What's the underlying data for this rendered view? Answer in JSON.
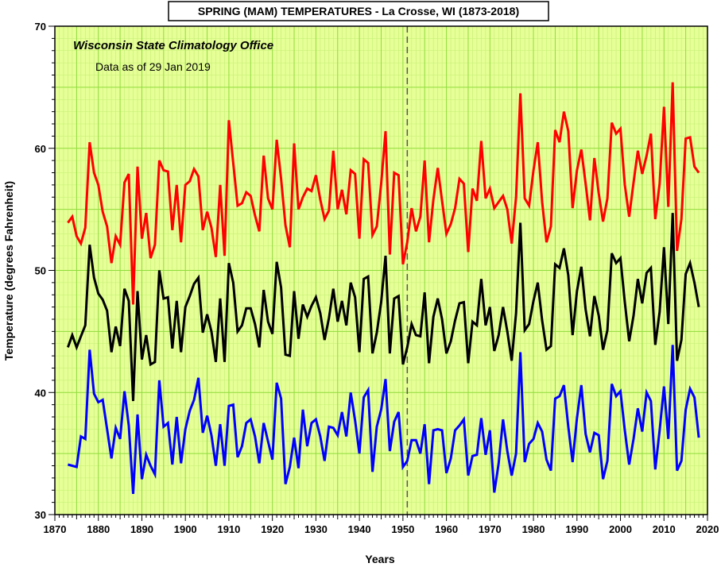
{
  "chart_data": {
    "type": "line",
    "title": "SPRING (MAM) TEMPERATURES - La Crosse, WI  (1873-2018)",
    "annotations": [
      "Wisconsin State Climatology Office",
      "Data as of 29 Jan 2019"
    ],
    "xlabel": "Years",
    "ylabel": "Temperature (degrees Fahrenheit)",
    "xlim": [
      1870,
      2020
    ],
    "ylim": [
      30,
      70
    ],
    "x_ticks": [
      "1870",
      "1880",
      "1890",
      "1900",
      "1910",
      "1920",
      "1930",
      "1940",
      "1950",
      "1960",
      "1970",
      "1980",
      "1990",
      "2000",
      "2010",
      "2020"
    ],
    "y_ticks": [
      "30",
      "40",
      "50",
      "60",
      "70"
    ],
    "grid": true,
    "vline_x": 1951,
    "x": [
      1873,
      1874,
      1875,
      1876,
      1877,
      1878,
      1879,
      1880,
      1881,
      1882,
      1883,
      1884,
      1885,
      1886,
      1887,
      1888,
      1889,
      1890,
      1891,
      1892,
      1893,
      1894,
      1895,
      1896,
      1897,
      1898,
      1899,
      1900,
      1901,
      1902,
      1903,
      1904,
      1905,
      1906,
      1907,
      1908,
      1909,
      1910,
      1911,
      1912,
      1913,
      1914,
      1915,
      1916,
      1917,
      1918,
      1919,
      1920,
      1921,
      1922,
      1923,
      1924,
      1925,
      1926,
      1927,
      1928,
      1929,
      1930,
      1931,
      1932,
      1933,
      1934,
      1935,
      1936,
      1937,
      1938,
      1939,
      1940,
      1941,
      1942,
      1943,
      1944,
      1945,
      1946,
      1947,
      1948,
      1949,
      1950,
      1951,
      1952,
      1953,
      1954,
      1955,
      1956,
      1957,
      1958,
      1959,
      1960,
      1961,
      1962,
      1963,
      1964,
      1965,
      1966,
      1967,
      1968,
      1969,
      1970,
      1971,
      1972,
      1973,
      1974,
      1975,
      1976,
      1977,
      1978,
      1979,
      1980,
      1981,
      1982,
      1983,
      1984,
      1985,
      1986,
      1987,
      1988,
      1989,
      1990,
      1991,
      1992,
      1993,
      1994,
      1995,
      1996,
      1997,
      1998,
      1999,
      2000,
      2001,
      2002,
      2003,
      2004,
      2005,
      2006,
      2007,
      2008,
      2009,
      2010,
      2011,
      2012,
      2013,
      2014,
      2015,
      2016,
      2017,
      2018
    ],
    "series": [
      {
        "color": "#ff0000",
        "values": [
          53.9,
          54.4,
          52.8,
          52.2,
          53.5,
          60.5,
          58.0,
          57.0,
          54.8,
          53.6,
          50.6,
          52.8,
          52.1,
          57.2,
          57.9,
          47.2,
          58.5,
          52.6,
          54.7,
          51.0,
          52.1,
          59.0,
          58.2,
          58.1,
          53.3,
          57.0,
          52.3,
          57.0,
          57.3,
          58.3,
          57.7,
          53.3,
          54.8,
          53.5,
          51.1,
          57.0,
          51.2,
          62.3,
          58.8,
          55.3,
          55.5,
          56.4,
          56.1,
          54.5,
          53.2,
          59.4,
          55.9,
          55.0,
          60.7,
          57.5,
          53.7,
          51.9,
          60.4,
          55.0,
          56.0,
          56.7,
          56.5,
          57.8,
          55.8,
          54.2,
          54.9,
          59.8,
          55.0,
          56.6,
          54.6,
          58.2,
          57.9,
          52.6,
          59.1,
          58.8,
          52.9,
          53.6,
          57.1,
          61.4,
          51.3,
          58.0,
          57.8,
          50.5,
          52.3,
          55.1,
          53.2,
          54.4,
          59.0,
          52.3,
          55.8,
          58.4,
          55.7,
          53.0,
          53.8,
          55.1,
          57.5,
          57.1,
          51.5,
          56.7,
          55.7,
          60.6,
          55.9,
          56.7,
          55.1,
          55.6,
          56.1,
          55.0,
          52.2,
          56.0,
          64.5,
          55.9,
          55.3,
          58.2,
          60.5,
          55.6,
          52.3,
          53.6,
          61.5,
          60.5,
          63.0,
          61.4,
          55.1,
          58.2,
          59.9,
          57.1,
          54.1,
          59.2,
          56.3,
          54.0,
          55.9,
          62.1,
          61.2,
          61.6,
          57.0,
          54.4,
          57.2,
          59.8,
          57.9,
          59.4,
          61.2,
          54.2,
          57.1,
          63.4,
          55.2,
          65.4,
          51.6,
          54.2,
          60.8,
          60.9,
          58.5,
          58.0
        ]
      },
      {
        "color": "#000000",
        "values": [
          43.7,
          44.7,
          43.7,
          44.6,
          45.5,
          52.1,
          49.4,
          48.1,
          47.6,
          46.7,
          43.3,
          45.4,
          43.8,
          48.5,
          47.5,
          39.3,
          48.3,
          42.7,
          44.7,
          42.3,
          42.5,
          50.0,
          47.7,
          47.8,
          43.6,
          47.5,
          43.3,
          47.0,
          47.9,
          48.9,
          49.4,
          44.9,
          46.4,
          45.0,
          42.5,
          47.7,
          42.5,
          50.6,
          49.0,
          45.0,
          45.5,
          46.9,
          46.9,
          45.6,
          43.7,
          48.4,
          45.8,
          44.8,
          50.7,
          48.6,
          43.1,
          43.0,
          48.3,
          44.4,
          47.2,
          46.2,
          47.1,
          47.8,
          46.5,
          44.3,
          46.1,
          48.5,
          45.8,
          47.5,
          45.5,
          49.0,
          47.8,
          43.3,
          49.3,
          49.5,
          43.2,
          44.9,
          47.4,
          51.2,
          43.2,
          47.7,
          47.9,
          42.3,
          43.7,
          45.6,
          44.7,
          44.6,
          48.2,
          42.4,
          46.2,
          47.7,
          46.0,
          43.2,
          44.2,
          45.9,
          47.3,
          47.4,
          42.4,
          45.8,
          45.5,
          49.3,
          45.5,
          47.0,
          43.4,
          44.7,
          47.0,
          45.0,
          42.6,
          46.5,
          53.9,
          45.1,
          45.6,
          47.5,
          49.0,
          45.9,
          43.5,
          43.8,
          50.5,
          50.2,
          51.8,
          49.6,
          44.7,
          48.3,
          50.3,
          46.8,
          44.6,
          47.9,
          46.3,
          43.5,
          45.1,
          51.4,
          50.6,
          51.0,
          47.4,
          44.2,
          46.3,
          49.3,
          47.3,
          49.8,
          50.2,
          43.9,
          46.6,
          51.9,
          45.6,
          54.7,
          42.6,
          44.3,
          49.7,
          50.6,
          49.0,
          47.0
        ]
      },
      {
        "color": "#0000ff",
        "values": [
          34.1,
          34.0,
          33.9,
          36.4,
          36.2,
          43.5,
          39.9,
          39.2,
          39.4,
          37.0,
          34.6,
          37.1,
          36.2,
          40.1,
          37.3,
          31.7,
          38.2,
          32.9,
          34.9,
          34.0,
          33.3,
          41.0,
          37.2,
          37.5,
          34.1,
          38.0,
          34.2,
          37.0,
          38.5,
          39.4,
          41.2,
          36.7,
          38.1,
          36.5,
          34.0,
          37.4,
          34.0,
          38.9,
          39.0,
          34.7,
          35.6,
          37.5,
          37.8,
          36.4,
          34.2,
          37.5,
          36.0,
          34.5,
          40.8,
          39.5,
          32.5,
          33.9,
          36.3,
          33.8,
          38.6,
          35.6,
          37.5,
          37.8,
          36.4,
          34.4,
          37.2,
          37.1,
          36.5,
          38.4,
          36.4,
          40.0,
          37.7,
          35.0,
          39.6,
          40.2,
          33.5,
          37.2,
          38.6,
          41.1,
          35.2,
          37.6,
          38.4,
          33.9,
          34.4,
          36.1,
          36.1,
          35.0,
          37.4,
          32.5,
          36.9,
          37.0,
          36.9,
          33.4,
          34.6,
          36.9,
          37.3,
          37.8,
          33.2,
          34.8,
          34.9,
          37.9,
          34.9,
          36.9,
          31.8,
          34.2,
          37.8,
          35.2,
          33.2,
          35.0,
          43.3,
          34.3,
          35.8,
          36.2,
          37.5,
          36.8,
          34.5,
          33.6,
          39.5,
          39.7,
          40.6,
          37.2,
          34.3,
          37.9,
          40.6,
          36.6,
          35.1,
          36.7,
          36.5,
          32.9,
          34.4,
          40.7,
          39.7,
          40.1,
          36.9,
          34.1,
          36.2,
          38.7,
          36.8,
          40.0,
          39.3,
          33.7,
          36.9,
          40.5,
          36.2,
          43.9,
          33.6,
          34.4,
          38.6,
          40.3,
          39.6,
          36.3
        ]
      }
    ]
  }
}
